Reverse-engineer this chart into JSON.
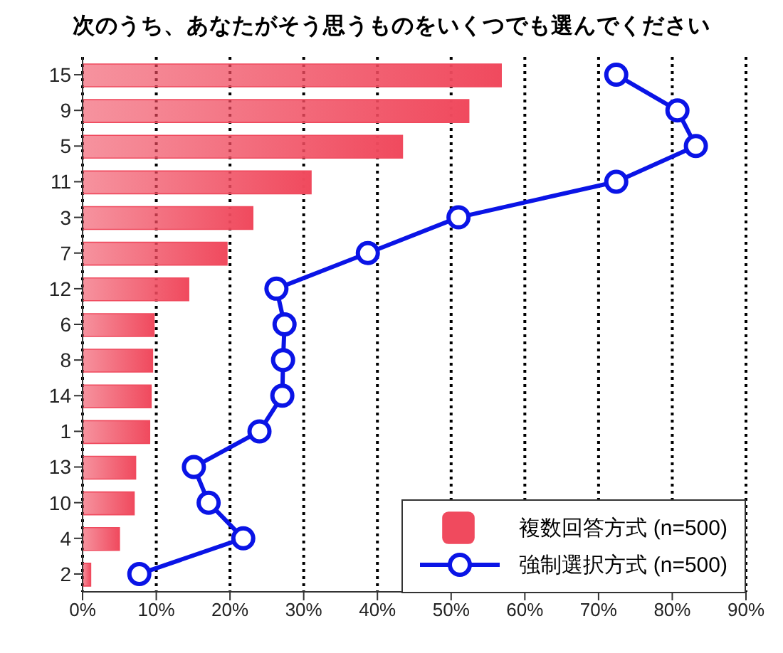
{
  "chart_data": {
    "type": "bar",
    "orientation": "horizontal",
    "title": "次のうち、あなたがそう思うものをいくつでも選んでください",
    "categories": [
      "15",
      "9",
      "5",
      "11",
      "3",
      "7",
      "12",
      "6",
      "8",
      "14",
      "1",
      "13",
      "10",
      "4",
      "2"
    ],
    "series": [
      {
        "name": "複数回答方式 (n=500)",
        "color": "#f04a5e",
        "values": [
          56.8,
          52.4,
          43.4,
          31.0,
          23.1,
          19.6,
          14.4,
          9.7,
          9.5,
          9.3,
          9.1,
          7.2,
          7.0,
          5.0,
          1.1
        ]
      },
      {
        "name": "強制選択方式 (n=500)",
        "type": "line",
        "color": "#0a14e6",
        "marker": "circle",
        "values": [
          72.4,
          80.7,
          83.2,
          72.4,
          51.0,
          38.7,
          26.3,
          27.4,
          27.2,
          27.1,
          24.0,
          15.1,
          17.1,
          21.8,
          7.7
        ]
      }
    ],
    "xlim": [
      0,
      90
    ],
    "xticks": [
      {
        "value": 0,
        "label": "0%"
      },
      {
        "value": 10,
        "label": "10%"
      },
      {
        "value": 20,
        "label": "20%"
      },
      {
        "value": 30,
        "label": "30%"
      },
      {
        "value": 40,
        "label": "40%"
      },
      {
        "value": 50,
        "label": "50%"
      },
      {
        "value": 60,
        "label": "60%"
      },
      {
        "value": 70,
        "label": "70%"
      },
      {
        "value": 80,
        "label": "80%"
      },
      {
        "value": 90,
        "label": "90%"
      }
    ],
    "grid": "x",
    "legend": "bottom right"
  }
}
